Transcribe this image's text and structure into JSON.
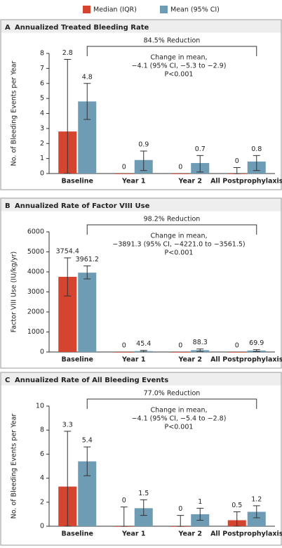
{
  "legend": [
    {
      "name": "Median (IQR)",
      "color": "#d4442e"
    },
    {
      "name": "Mean (95% CI)",
      "color": "#6e9cb4"
    }
  ],
  "chart_data": [
    {
      "type": "bar",
      "panel": "A",
      "title": "Annualized Treated Bleeding Rate",
      "ylabel": "No. of Bleeding Events per Year",
      "categories": [
        "Baseline",
        "Year 1",
        "Year 2",
        "All Postprophylaxis"
      ],
      "ylim": [
        0,
        8
      ],
      "yticks": [
        0,
        1,
        2,
        3,
        4,
        5,
        6,
        7,
        8
      ],
      "series": [
        {
          "values": [
            2.8,
            0,
            0,
            0
          ],
          "error_low": [
            0,
            null,
            null,
            0
          ],
          "error_high": [
            7.6,
            null,
            null,
            0.4
          ]
        },
        {
          "values": [
            4.8,
            0.9,
            0.7,
            0.8
          ],
          "error_low": [
            3.6,
            0.2,
            0.1,
            0.2
          ],
          "error_high": [
            6.0,
            1.5,
            1.2,
            1.2
          ]
        }
      ],
      "annotation": {
        "reduction": "84.5% Reduction",
        "lines": [
          "Change in mean,",
          "−4.1 (95% CI, −5.3 to −2.9)",
          "P<0.001"
        ]
      }
    },
    {
      "type": "bar",
      "panel": "B",
      "title": "Annualized Rate of Factor VIII Use",
      "ylabel": "Factor VIII Use (IU/kg/yr)",
      "categories": [
        "Baseline",
        "Year 1",
        "Year 2",
        "All Postprophylaxis"
      ],
      "ylim": [
        0,
        6000
      ],
      "yticks": [
        0,
        1000,
        2000,
        3000,
        4000,
        5000,
        6000
      ],
      "series": [
        {
          "values": [
            3754.4,
            0,
            0,
            0
          ],
          "error_low": [
            2800,
            null,
            null,
            null
          ],
          "error_high": [
            4700,
            null,
            null,
            null
          ]
        },
        {
          "values": [
            3961.2,
            45.4,
            88.3,
            69.9
          ],
          "error_low": [
            3650,
            0,
            30,
            20
          ],
          "error_high": [
            4300,
            80,
            150,
            120
          ]
        }
      ],
      "annotation": {
        "reduction": "98.2% Reduction",
        "lines": [
          "Change in mean,",
          "−3891.3 (95% CI, −4221.0 to −3561.5)",
          "P<0.001"
        ]
      }
    },
    {
      "type": "bar",
      "panel": "C",
      "title": "Annualized Rate of All Bleeding Events",
      "ylabel": "No. of Bleeding Events per Year",
      "categories": [
        "Baseline",
        "Year 1",
        "Year 2",
        "All Postprophylaxis"
      ],
      "ylim": [
        0,
        10
      ],
      "yticks": [
        0,
        2,
        4,
        6,
        8,
        10
      ],
      "series": [
        {
          "values": [
            3.3,
            0,
            0,
            0.5
          ],
          "error_low": [
            0,
            0,
            0,
            0
          ],
          "error_high": [
            7.9,
            1.6,
            0.9,
            1.2
          ]
        },
        {
          "values": [
            5.4,
            1.5,
            1.0,
            1.2
          ],
          "error_low": [
            4.2,
            0.9,
            0.5,
            0.7
          ],
          "error_high": [
            6.6,
            2.2,
            1.5,
            1.7
          ]
        }
      ],
      "annotation": {
        "reduction": "77.0% Reduction",
        "lines": [
          "Change in mean,",
          "−4.1 (95% CI, −5.4 to −2.8)",
          "P<0.001"
        ]
      }
    }
  ]
}
